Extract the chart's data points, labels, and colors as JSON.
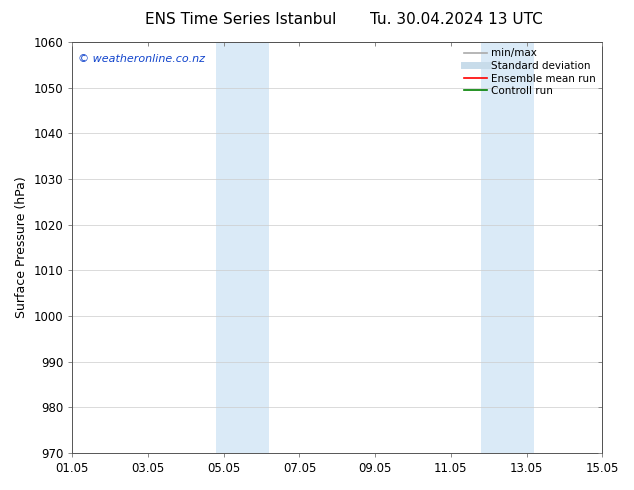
{
  "title_left": "ENS Time Series Istanbul",
  "title_right": "Tu. 30.04.2024 13 UTC",
  "ylabel": "Surface Pressure (hPa)",
  "ylim": [
    970,
    1060
  ],
  "yticks": [
    970,
    980,
    990,
    1000,
    1010,
    1020,
    1030,
    1040,
    1050,
    1060
  ],
  "xlim_start": 0,
  "xlim_end": 14,
  "xtick_labels": [
    "01.05",
    "03.05",
    "05.05",
    "07.05",
    "09.05",
    "11.05",
    "13.05",
    "15.05"
  ],
  "xtick_positions": [
    0,
    2,
    4,
    6,
    8,
    10,
    12,
    14
  ],
  "shaded_regions": [
    {
      "xmin": 3.8,
      "xmax": 5.2,
      "color": "#daeaf7"
    },
    {
      "xmin": 10.8,
      "xmax": 12.2,
      "color": "#daeaf7"
    }
  ],
  "watermark_text": "© weatheronline.co.nz",
  "watermark_color": "#1144cc",
  "legend_entries": [
    {
      "label": "min/max",
      "color": "#aaaaaa",
      "lw": 1.2,
      "style": "solid"
    },
    {
      "label": "Standard deviation",
      "color": "#c8dcea",
      "lw": 5,
      "style": "solid"
    },
    {
      "label": "Ensemble mean run",
      "color": "red",
      "lw": 1.2,
      "style": "solid"
    },
    {
      "label": "Controll run",
      "color": "green",
      "lw": 1.2,
      "style": "solid"
    }
  ],
  "bg_color": "#ffffff",
  "grid_color": "#cccccc",
  "title_fontsize": 11,
  "tick_fontsize": 8.5,
  "label_fontsize": 9,
  "legend_fontsize": 7.5
}
